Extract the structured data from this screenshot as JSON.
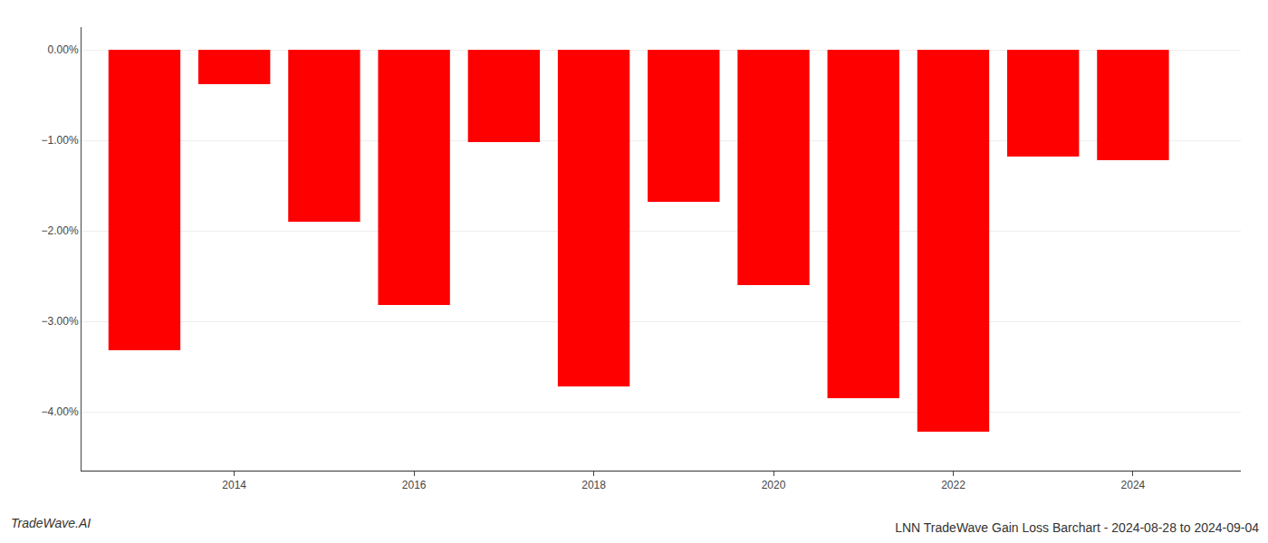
{
  "chart_data": {
    "type": "bar",
    "title": "LNN TradeWave Gain Loss Barchart - 2024-08-28 to 2024-09-04",
    "annotations": [
      {
        "text": "TradeWave.AI"
      }
    ],
    "x": [
      2013,
      2014,
      2015,
      2016,
      2017,
      2018,
      2019,
      2020,
      2021,
      2022,
      2023,
      2024
    ],
    "values": [
      -3.32,
      -0.38,
      -1.9,
      -2.82,
      -1.02,
      -3.72,
      -1.68,
      -2.6,
      -3.85,
      -4.22,
      -1.18,
      -1.22
    ],
    "color": "#ff0000",
    "xlim": [
      2012.3,
      2025.2
    ],
    "xticks": [
      2014,
      2016,
      2018,
      2020,
      2022,
      2024
    ],
    "ylim": [
      -4.65,
      0.25
    ],
    "yticks": [
      {
        "value": 0.0,
        "label": "0.00%"
      },
      {
        "value": -1.0,
        "label": "−1.00%"
      },
      {
        "value": -2.0,
        "label": "−2.00%"
      },
      {
        "value": -3.0,
        "label": "−3.00%"
      },
      {
        "value": -4.0,
        "label": "−4.00%"
      }
    ],
    "grid": true
  }
}
